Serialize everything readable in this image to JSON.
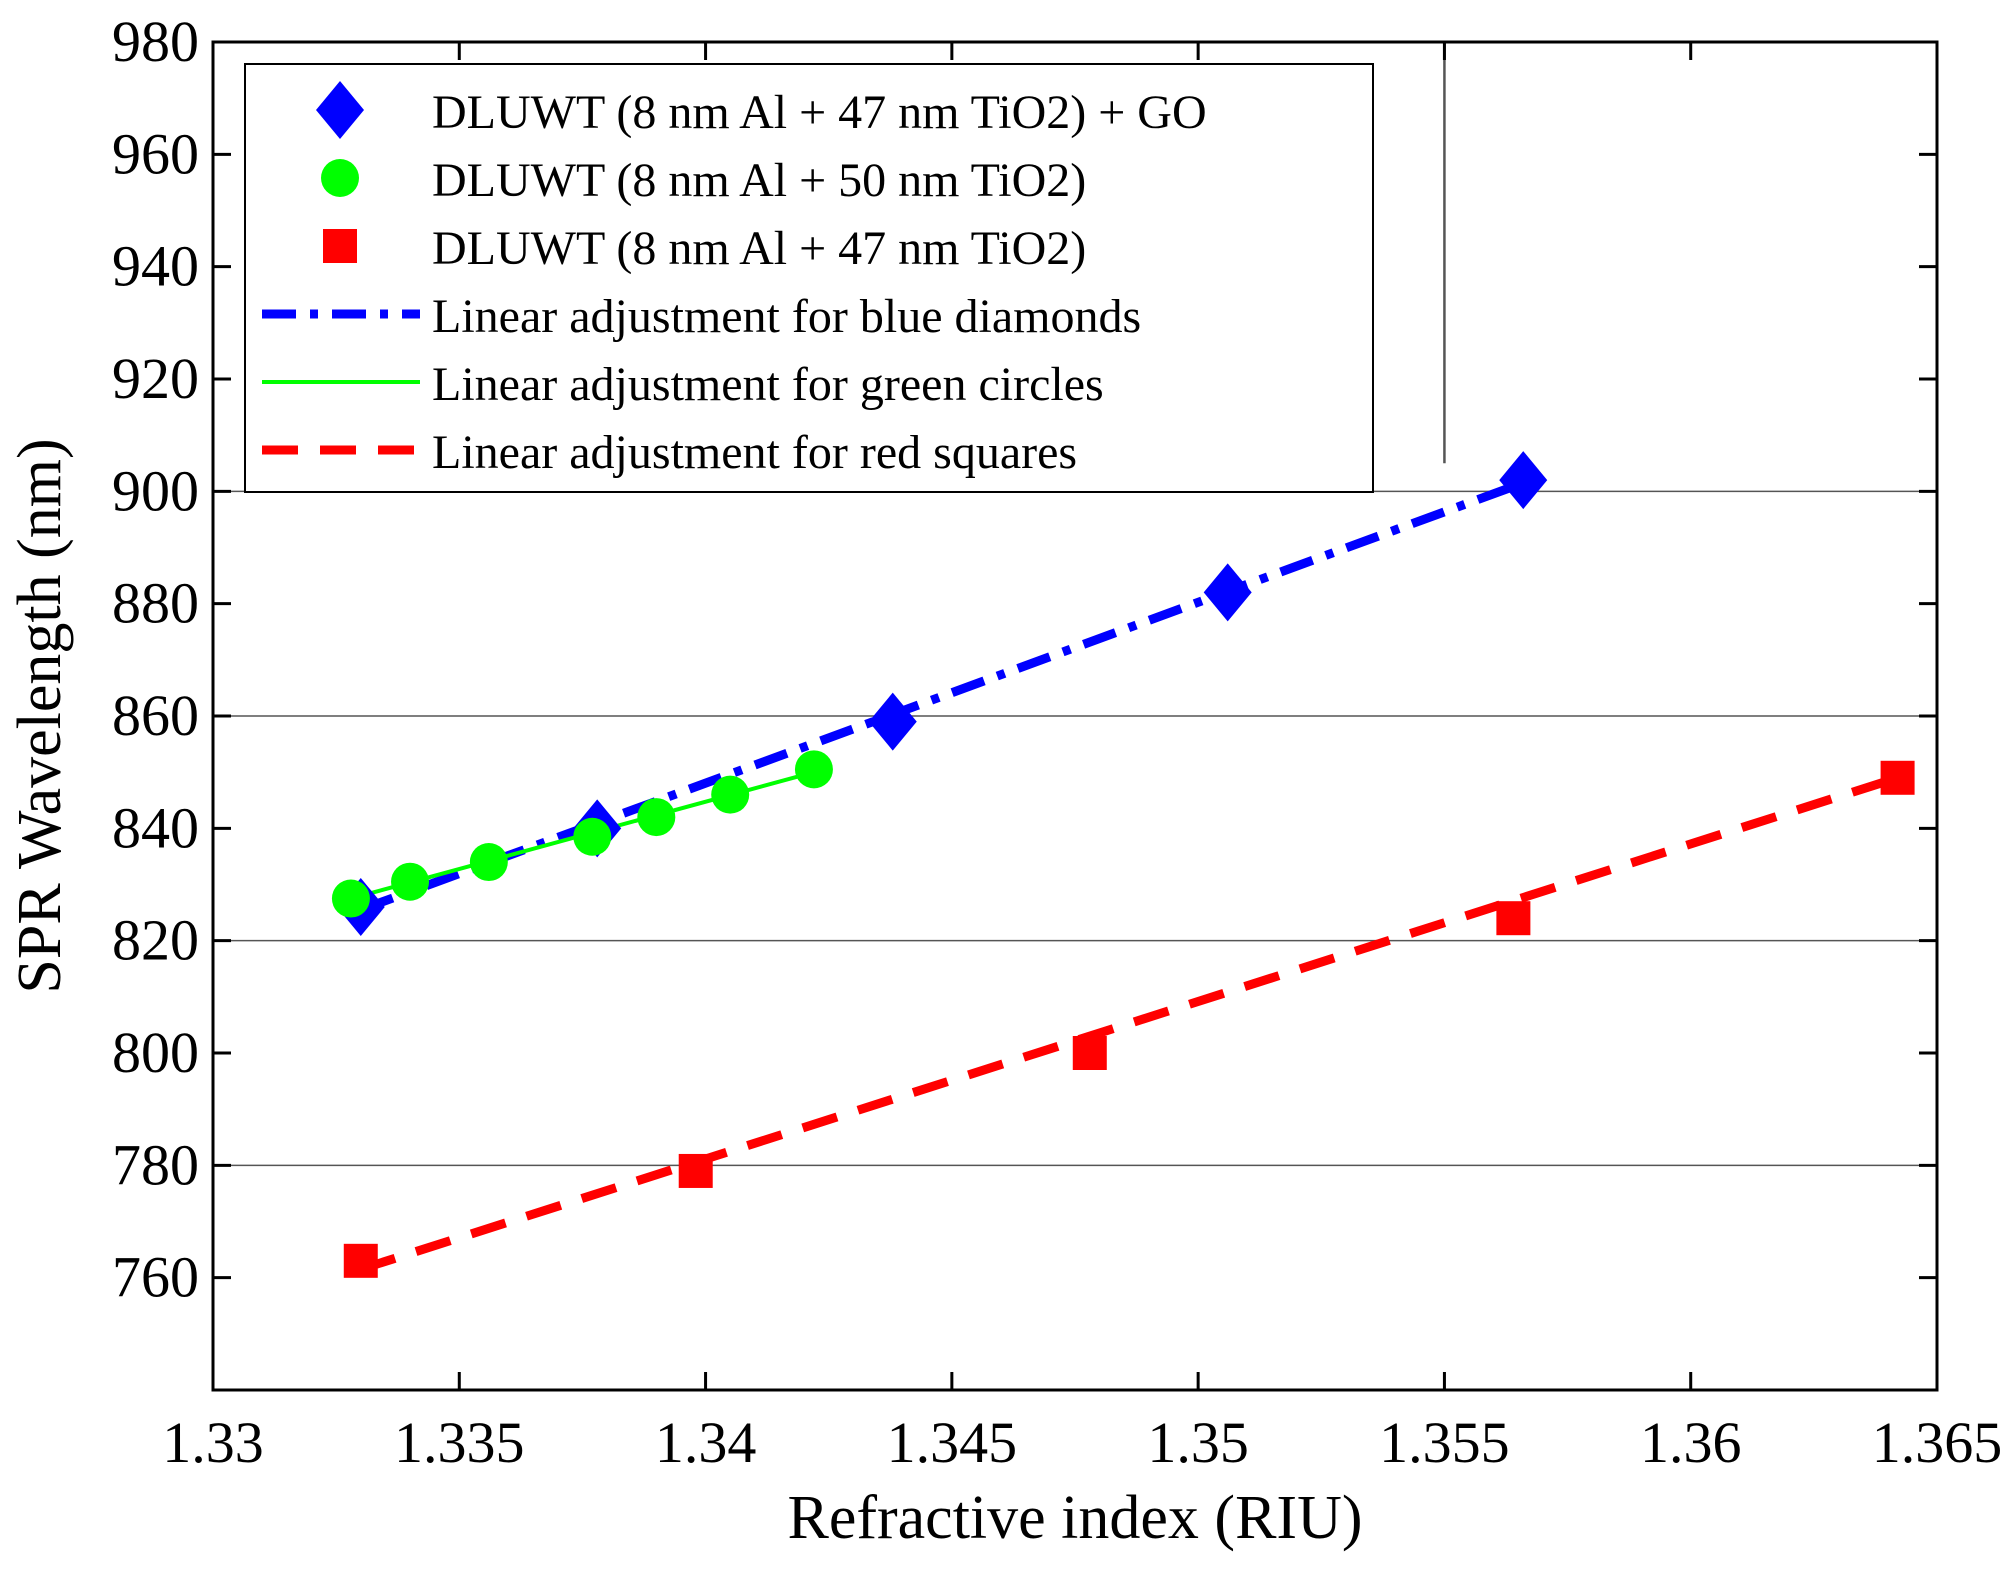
{
  "chart_data": {
    "type": "line",
    "title": "",
    "xlabel": "Refractive index (RIU)",
    "ylabel": "SPR Wavelength (nm)",
    "xlim": [
      1.33,
      1.365
    ],
    "ylim": [
      740,
      980
    ],
    "xticks": [
      1.33,
      1.335,
      1.34,
      1.345,
      1.35,
      1.355,
      1.36,
      1.365
    ],
    "xtick_labels": [
      "1.33",
      "1.335",
      "1.34",
      "1.345",
      "1.35",
      "1.355",
      "1.36",
      "1.365"
    ],
    "yticks": [
      760,
      780,
      800,
      820,
      840,
      860,
      880,
      900,
      920,
      940,
      960,
      980
    ],
    "ytick_labels": [
      "760",
      "780",
      "800",
      "820",
      "840",
      "860",
      "880",
      "900",
      "920",
      "940",
      "960",
      "980"
    ],
    "grid_y": [
      780,
      820,
      860,
      900
    ],
    "grid_y_color": "#555555",
    "vertical_marker_x": 1.355,
    "vertical_marker_y_range": [
      905,
      980
    ],
    "legend_position": "top-left",
    "series": [
      {
        "name": "DLUWT (8 nm Al + 47 nm TiO2) + GO",
        "marker": "diamond",
        "color": "#0000ff",
        "x": [
          1.333,
          1.3378,
          1.3438,
          1.3506,
          1.3566
        ],
        "y": [
          826,
          840,
          859,
          882,
          902
        ]
      },
      {
        "name": "DLUWT (8 nm Al + 50 nm TiO2)",
        "marker": "circle",
        "color": "#00ff00",
        "x": [
          1.3328,
          1.334,
          1.3356,
          1.3377,
          1.339,
          1.3405,
          1.3422
        ],
        "y": [
          827.5,
          830.5,
          834,
          838.5,
          842,
          846,
          850.5
        ]
      },
      {
        "name": "DLUWT (8 nm Al + 47 nm TiO2)",
        "marker": "square",
        "color": "#ff0000",
        "x": [
          1.333,
          1.3398,
          1.3478,
          1.3564,
          1.3642
        ],
        "y": [
          763,
          779,
          800,
          824,
          849
        ]
      }
    ],
    "fits": [
      {
        "name": "Linear adjustment for blue diamonds",
        "style": "dashdot",
        "color": "#0000ff",
        "x": [
          1.333,
          1.3566
        ],
        "y": [
          825.5,
          901.5
        ]
      },
      {
        "name": "Linear adjustment for green circles",
        "style": "solid",
        "color": "#00ff00",
        "x": [
          1.3328,
          1.3422
        ],
        "y": [
          827.5,
          850
        ]
      },
      {
        "name": "Linear adjustment for red squares",
        "style": "dashed",
        "color": "#ff0000",
        "x": [
          1.333,
          1.3642
        ],
        "y": [
          761.5,
          849
        ]
      }
    ]
  }
}
